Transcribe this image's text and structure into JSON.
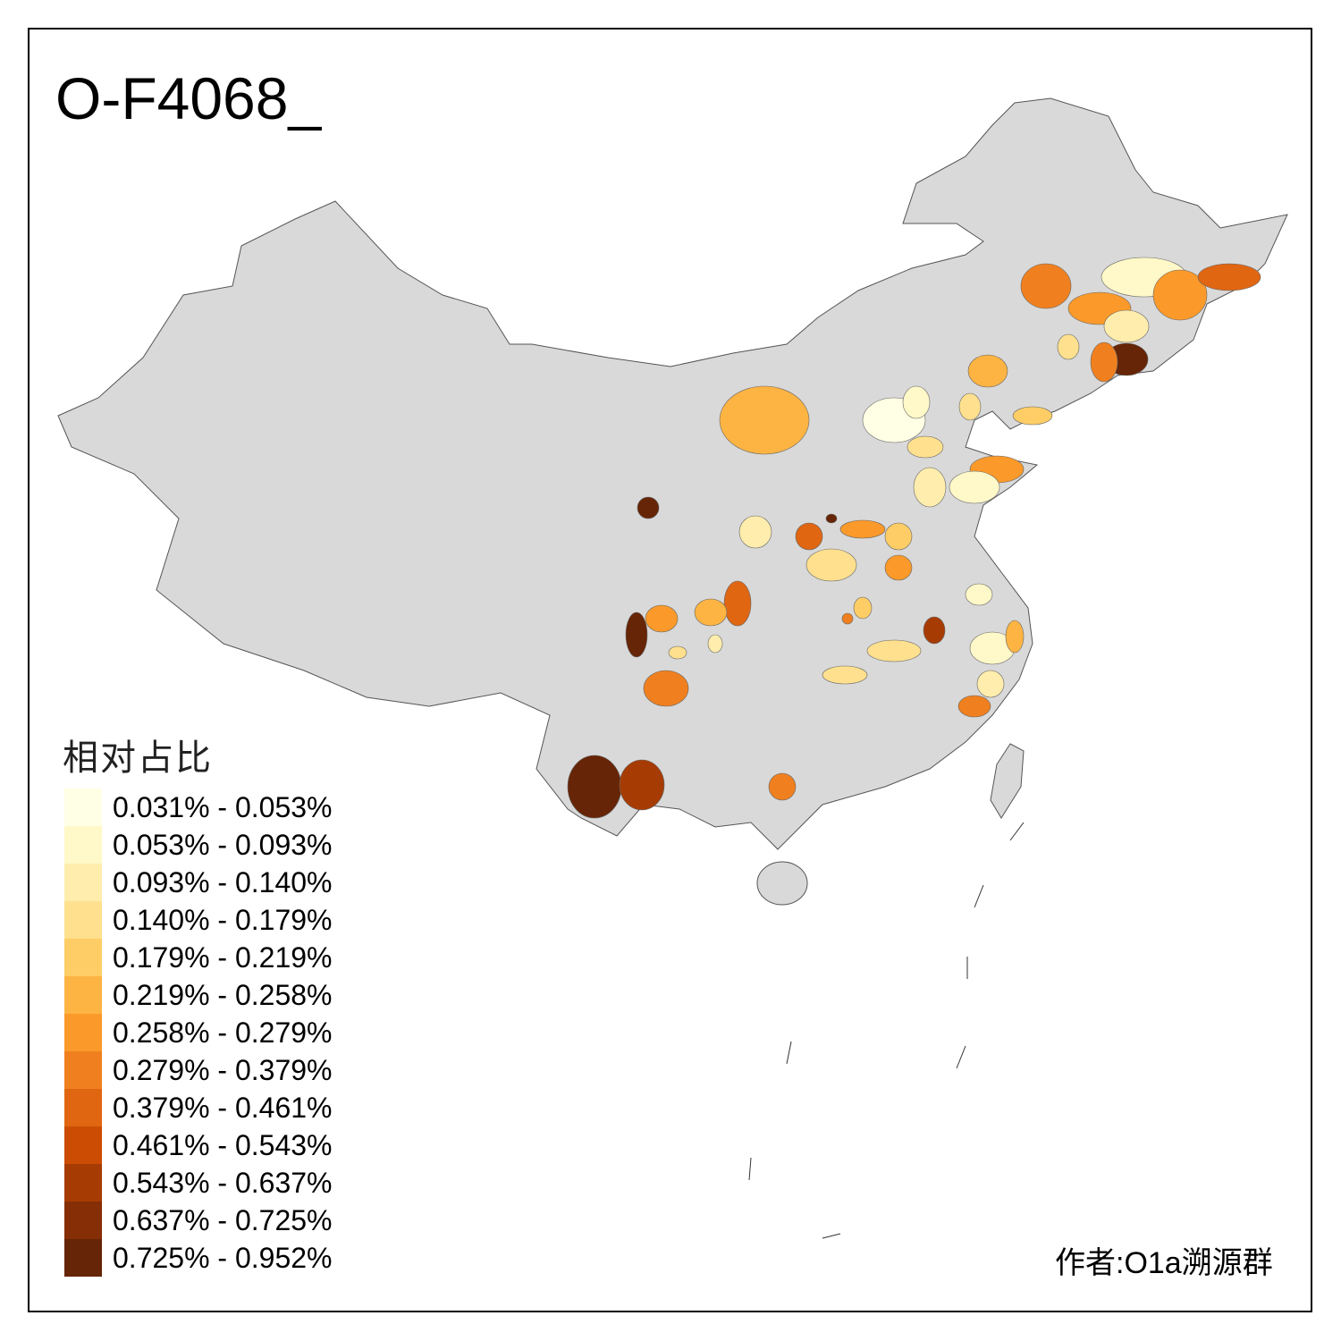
{
  "title": "O-F4068_",
  "legend": {
    "title": "相对占比",
    "items": [
      {
        "label": "0.031% - 0.053%",
        "color": "#FFFFE5"
      },
      {
        "label": "0.053% - 0.093%",
        "color": "#FFF8C8"
      },
      {
        "label": "0.093% - 0.140%",
        "color": "#FEEDAD"
      },
      {
        "label": "0.140% - 0.179%",
        "color": "#FEE08E"
      },
      {
        "label": "0.179% - 0.219%",
        "color": "#FECD66"
      },
      {
        "label": "0.219% - 0.258%",
        "color": "#FDB443"
      },
      {
        "label": "0.258% - 0.279%",
        "color": "#FB9A2A"
      },
      {
        "label": "0.279% - 0.379%",
        "color": "#F0801F"
      },
      {
        "label": "0.379% - 0.461%",
        "color": "#E06612"
      },
      {
        "label": "0.461% - 0.543%",
        "color": "#CC4C03"
      },
      {
        "label": "0.543% - 0.637%",
        "color": "#A63C04"
      },
      {
        "label": "0.637% - 0.725%",
        "color": "#862E05"
      },
      {
        "label": "0.725% - 0.952%",
        "color": "#662506"
      }
    ]
  },
  "base_color": "#D9D9D9",
  "author": "作者:O1a溯源群"
}
